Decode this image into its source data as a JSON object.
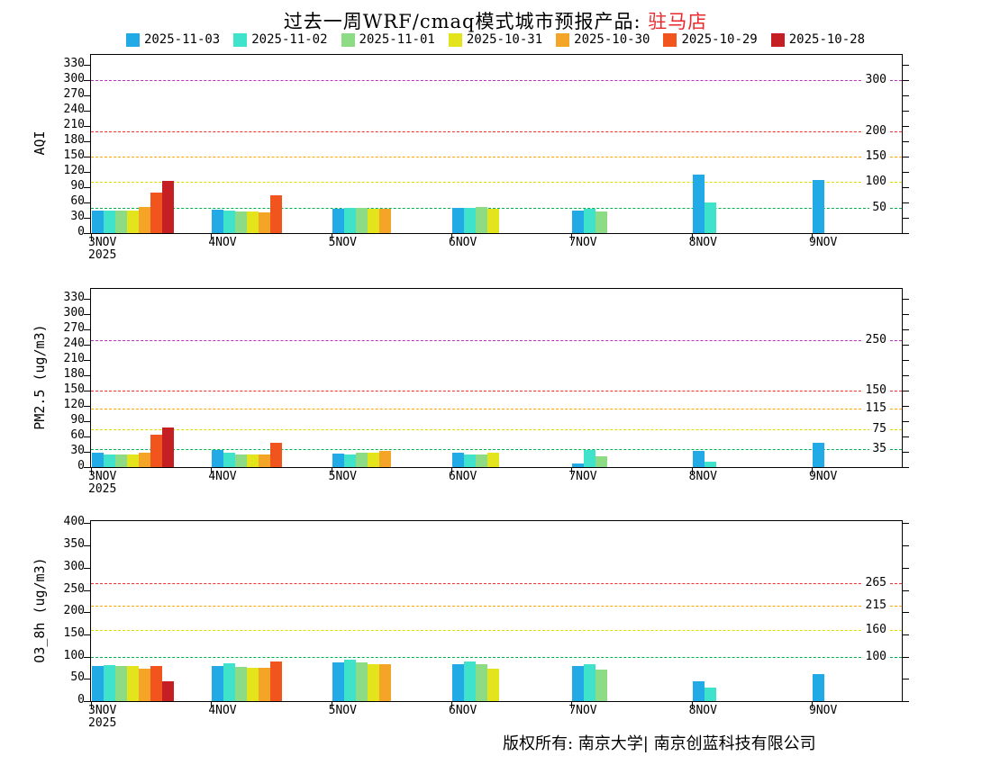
{
  "title": {
    "prefix": "过去一周WRF/cmaq模式城市预报产品: ",
    "city": "驻马店"
  },
  "footer": "版权所有: 南京大学| 南京创蓝科技有限公司",
  "legend": [
    {
      "label": "2025-11-03",
      "color": "#21aae6"
    },
    {
      "label": "2025-11-02",
      "color": "#3fe3cc"
    },
    {
      "label": "2025-11-01",
      "color": "#8edb85"
    },
    {
      "label": "2025-10-31",
      "color": "#e4e41c"
    },
    {
      "label": "2025-10-30",
      "color": "#f4a427"
    },
    {
      "label": "2025-10-29",
      "color": "#f2541e"
    },
    {
      "label": "2025-10-28",
      "color": "#c51f24"
    }
  ],
  "chart_data": [
    {
      "type": "bar",
      "title": "AQI past-week forecast comparison",
      "ylabel": "AQI",
      "ylim": [
        0,
        350
      ],
      "ytick_step": 30,
      "ytick_max": 330,
      "grid": false,
      "legend_position": "top",
      "categories": [
        "3NOV",
        "4NOV",
        "5NOV",
        "6NOV",
        "7NOV",
        "8NOV",
        "9NOV"
      ],
      "year_label": "2025",
      "series": [
        {
          "name": "2025-11-03",
          "color": "#21aae6",
          "values": [
            44,
            46,
            48,
            50,
            45,
            115,
            105
          ]
        },
        {
          "name": "2025-11-02",
          "color": "#3fe3cc",
          "values": [
            44,
            45,
            50,
            50,
            48,
            60,
            null
          ]
        },
        {
          "name": "2025-11-01",
          "color": "#8edb85",
          "values": [
            45,
            43,
            50,
            52,
            42,
            null,
            null
          ]
        },
        {
          "name": "2025-10-31",
          "color": "#e4e41c",
          "values": [
            45,
            43,
            48,
            48,
            null,
            null,
            null
          ]
        },
        {
          "name": "2025-10-30",
          "color": "#f4a427",
          "values": [
            52,
            40,
            48,
            null,
            null,
            null,
            null
          ]
        },
        {
          "name": "2025-10-29",
          "color": "#f2541e",
          "values": [
            80,
            75,
            null,
            null,
            null,
            null,
            null
          ]
        },
        {
          "name": "2025-10-28",
          "color": "#c51f24",
          "values": [
            103,
            null,
            null,
            null,
            null,
            null,
            null
          ]
        }
      ],
      "thresholds": [
        {
          "value": 50,
          "label": "50",
          "color": "#00b050"
        },
        {
          "value": 100,
          "label": "100",
          "color": "#dddd00"
        },
        {
          "value": 150,
          "label": "150",
          "color": "#ffa500"
        },
        {
          "value": 200,
          "label": "200",
          "color": "#f03030"
        },
        {
          "value": 300,
          "label": "300",
          "color": "#bb33bb"
        }
      ]
    },
    {
      "type": "bar",
      "title": "PM2.5 past-week forecast comparison",
      "ylabel": "PM2.5 (ug/m3)",
      "ylim": [
        0,
        350
      ],
      "ytick_step": 30,
      "ytick_max": 330,
      "grid": false,
      "legend_position": "top",
      "categories": [
        "3NOV",
        "4NOV",
        "5NOV",
        "6NOV",
        "7NOV",
        "8NOV",
        "9NOV"
      ],
      "year_label": "2025",
      "series": [
        {
          "name": "2025-11-03",
          "color": "#21aae6",
          "values": [
            28,
            33,
            27,
            29,
            7,
            32,
            48
          ]
        },
        {
          "name": "2025-11-02",
          "color": "#3fe3cc",
          "values": [
            25,
            28,
            24,
            24,
            33,
            11,
            null
          ]
        },
        {
          "name": "2025-11-01",
          "color": "#8edb85",
          "values": [
            24,
            25,
            29,
            25,
            22,
            null,
            null
          ]
        },
        {
          "name": "2025-10-31",
          "color": "#e4e41c",
          "values": [
            24,
            24,
            29,
            28,
            null,
            null,
            null
          ]
        },
        {
          "name": "2025-10-30",
          "color": "#f4a427",
          "values": [
            28,
            24,
            32,
            null,
            null,
            null,
            null
          ]
        },
        {
          "name": "2025-10-29",
          "color": "#f2541e",
          "values": [
            63,
            48,
            null,
            null,
            null,
            null,
            null
          ]
        },
        {
          "name": "2025-10-28",
          "color": "#c51f24",
          "values": [
            78,
            null,
            null,
            null,
            null,
            null,
            null
          ]
        }
      ],
      "thresholds": [
        {
          "value": 35,
          "label": "35",
          "color": "#00b050"
        },
        {
          "value": 75,
          "label": "75",
          "color": "#dddd00"
        },
        {
          "value": 115,
          "label": "115",
          "color": "#ffa500"
        },
        {
          "value": 150,
          "label": "150",
          "color": "#f03030"
        },
        {
          "value": 250,
          "label": "250",
          "color": "#bb33bb"
        }
      ]
    },
    {
      "type": "bar",
      "title": "O3_8h past-week forecast comparison",
      "ylabel": "O3_8h (ug/m3)",
      "ylim": [
        0,
        405
      ],
      "ytick_step": 50,
      "ytick_max": 400,
      "grid": false,
      "legend_position": "top",
      "categories": [
        "3NOV",
        "4NOV",
        "5NOV",
        "6NOV",
        "7NOV",
        "8NOV",
        "9NOV"
      ],
      "year_label": "2025",
      "series": [
        {
          "name": "2025-11-03",
          "color": "#21aae6",
          "values": [
            80,
            78,
            88,
            84,
            80,
            45,
            60
          ]
        },
        {
          "name": "2025-11-02",
          "color": "#3fe3cc",
          "values": [
            82,
            85,
            93,
            90,
            83,
            30,
            null
          ]
        },
        {
          "name": "2025-11-01",
          "color": "#8edb85",
          "values": [
            80,
            76,
            87,
            84,
            71,
            null,
            null
          ]
        },
        {
          "name": "2025-10-31",
          "color": "#e4e41c",
          "values": [
            78,
            75,
            84,
            73,
            null,
            null,
            null
          ]
        },
        {
          "name": "2025-10-30",
          "color": "#f4a427",
          "values": [
            72,
            74,
            84,
            null,
            null,
            null,
            null
          ]
        },
        {
          "name": "2025-10-29",
          "color": "#f2541e",
          "values": [
            78,
            90,
            null,
            null,
            null,
            null,
            null
          ]
        },
        {
          "name": "2025-10-28",
          "color": "#c51f24",
          "values": [
            44,
            null,
            null,
            null,
            null,
            null,
            null
          ]
        }
      ],
      "thresholds": [
        {
          "value": 100,
          "label": "100",
          "color": "#00b050"
        },
        {
          "value": 160,
          "label": "160",
          "color": "#dddd00"
        },
        {
          "value": 215,
          "label": "215",
          "color": "#ffa500"
        },
        {
          "value": 265,
          "label": "265",
          "color": "#f03030"
        }
      ]
    }
  ]
}
